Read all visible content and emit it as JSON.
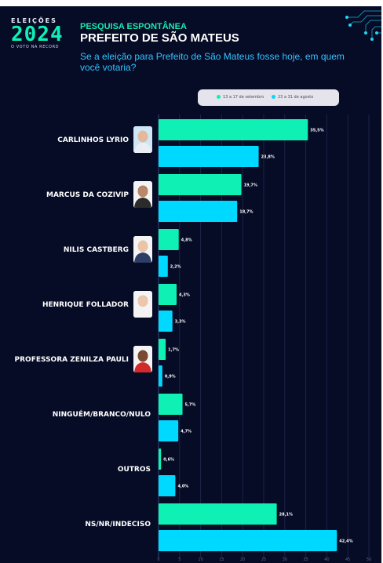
{
  "header": {
    "logo_top": "ELEIÇÕES",
    "logo_year": "2024",
    "logo_sub": "O VOTO NA RECORD",
    "kicker": "PESQUISA ESPONTÂNEA",
    "title": "PREFEITO DE SÃO MATEUS",
    "question": "Se a eleição para Prefeito de São Mateus fosse hoje, em quem você votaria?"
  },
  "colors": {
    "background": "#060b26",
    "series_sep": "#0ff0b5",
    "series_aug": "#00d9ff",
    "label": "#ffffff",
    "header_accent": "#1be9b0",
    "question": "#33c4ff"
  },
  "chart_data": {
    "type": "bar",
    "orientation": "horizontal",
    "categories": [
      "CARLINHOS LYRIO",
      "MARCUS DA COZIVIP",
      "NILIS CASTBERG",
      "HENRIQUE FOLLADOR",
      "PROFESSORA ZENILZA PAULI",
      "NINGUÉM/BRANCO/NULO",
      "OUTROS",
      "NS/NR/INDECISO"
    ],
    "series": [
      {
        "name": "13 a 17 de setembro",
        "color": "#0ff0b5",
        "values": [
          35.5,
          19.7,
          4.8,
          4.3,
          1.7,
          5.7,
          0.6,
          28.1
        ],
        "labels": [
          "35,5%",
          "19,7%",
          "4,8%",
          "4,3%",
          "1,7%",
          "5,7%",
          "0,6%",
          "28,1%"
        ]
      },
      {
        "name": "23 a 31 de agosto",
        "color": "#00d9ff",
        "values": [
          23.8,
          18.7,
          2.2,
          3.3,
          0.9,
          4.7,
          4.0,
          42.4
        ],
        "labels": [
          "23,8%",
          "18,7%",
          "2,2%",
          "3,3%",
          "0,9%",
          "4,7%",
          "4,0%",
          "42,4%"
        ]
      }
    ],
    "xlim": [
      0,
      50
    ],
    "xticks": [
      0,
      5,
      10,
      15,
      20,
      25,
      30,
      35,
      40,
      45,
      50
    ],
    "grid": true,
    "legend": "top",
    "title": "",
    "xlabel": "",
    "ylabel": ""
  },
  "photos": [
    "carlinhos-lyrio",
    "marcus-da-cozivip",
    "nilis-castberg",
    "henrique-follador",
    "professora-zenilza-pauli"
  ]
}
